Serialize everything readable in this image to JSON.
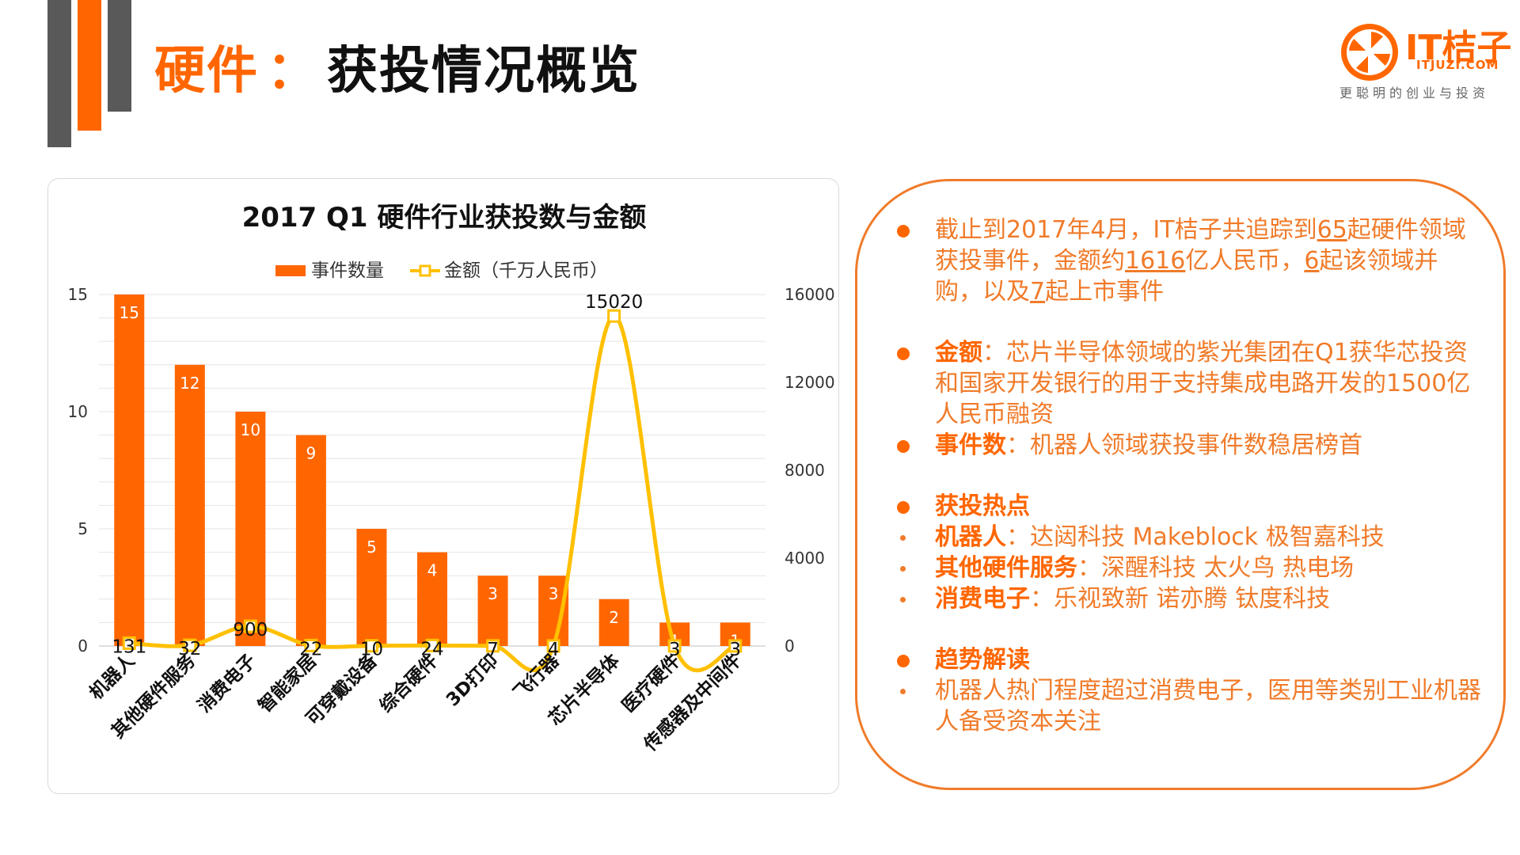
{
  "page": {
    "title_accent": "硬件",
    "title_sep": "：",
    "title_main": "获投情况概览"
  },
  "logo": {
    "brand": "IT桔子",
    "domain": "ITJUZI.COM",
    "slogan": "更聪明的创业与投资"
  },
  "colors": {
    "accent": "#ff6600",
    "line": "#ffc000",
    "text_orange": "#f07b2a",
    "deco_gray": "#595959"
  },
  "chart_data": {
    "type": "bar",
    "title": "2017 Q1 硬件行业获投数与金额",
    "legend_position": "top",
    "categories": [
      "机器人",
      "其他硬件服务",
      "消费电子",
      "智能家居",
      "可穿戴设备",
      "综合硬件",
      "3D打印",
      "飞行器",
      "芯片半导体",
      "医疗硬件",
      "传感器及中间件"
    ],
    "series": [
      {
        "name": "事件数量",
        "type": "bar",
        "axis": "left",
        "color": "#ff6600",
        "values": [
          15,
          12,
          10,
          9,
          5,
          4,
          3,
          3,
          2,
          1,
          1
        ]
      },
      {
        "name": "金额（千万人民币）",
        "type": "line",
        "axis": "right",
        "color": "#ffc000",
        "values": [
          131,
          32,
          900,
          22,
          10,
          24,
          7,
          4,
          15020,
          3,
          3
        ]
      }
    ],
    "y_left": {
      "min": 0,
      "max": 15,
      "ticks": [
        0,
        5,
        10,
        15
      ]
    },
    "y_right": {
      "min": 0,
      "max": 16000,
      "ticks": [
        0,
        4000,
        8000,
        12000,
        16000
      ]
    },
    "grid": true
  },
  "summary": {
    "p1": {
      "a": "截止到2017年4月，IT桔子共追踪到",
      "n1": "65",
      "b": "起硬件领域获投事件，金额约",
      "n2": "1616",
      "c": "亿人民币，",
      "n3": "6",
      "d": "起该领域并购，以及",
      "n4": "7",
      "e": "起上市事件"
    },
    "p2": {
      "k": "金额",
      "t": "：芯片半导体领域的紫光集团在Q1获华芯投资和国家开发银行的用于支持集成电路开发的1500亿人民币融资"
    },
    "p3": {
      "k": "事件数",
      "t": "：机器人领域获投事件数稳居榜首"
    },
    "p4": {
      "k": "获投热点"
    },
    "p5": {
      "k": "机器人",
      "t": "：达闼科技 Makeblock 极智嘉科技"
    },
    "p6": {
      "k": "其他硬件服务",
      "t": "：深醒科技 太火鸟 热电场"
    },
    "p7": {
      "k": "消费电子",
      "t": "：乐视致新 诺亦腾 钛度科技"
    },
    "p8": {
      "k": "趋势解读"
    },
    "p9": {
      "t": "机器人热门程度超过消费电子，医用等类别工业机器人备受资本关注"
    }
  }
}
